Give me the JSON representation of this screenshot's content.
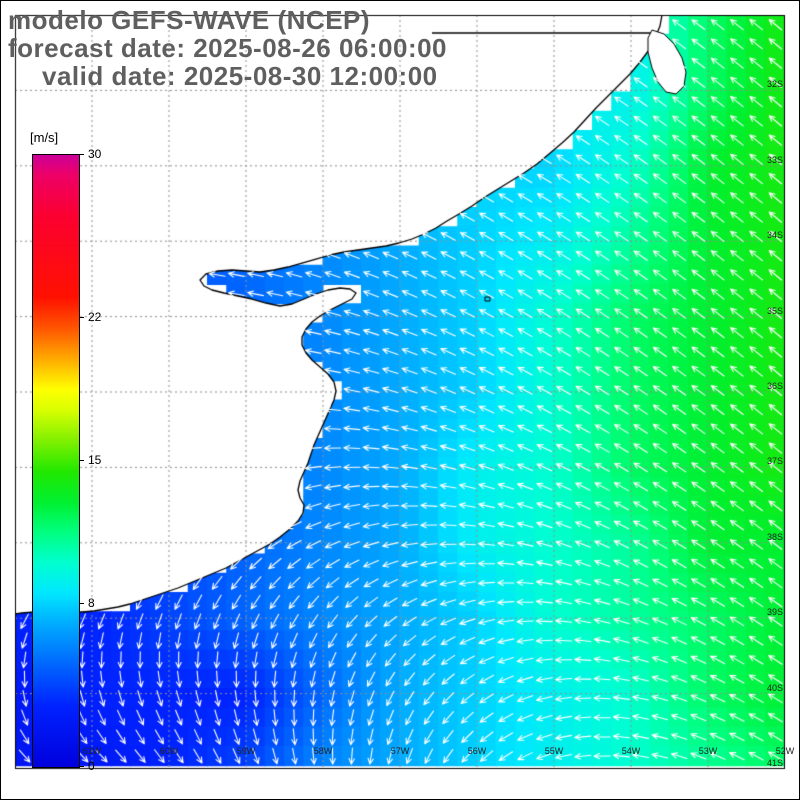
{
  "header": {
    "model_line": "modelo GEFS-WAVE (NCEP)",
    "forecast_line": "forecast date: 2025-08-26 06:00:00",
    "valid_line": "valid date: 2025-08-30 12:00:00"
  },
  "colorbar": {
    "unit_label": "[m/s]",
    "min": 0,
    "max": 30,
    "ticks": [
      {
        "v": 30,
        "label": "30"
      },
      {
        "v": 22,
        "label": "22"
      },
      {
        "v": 15,
        "label": "15"
      },
      {
        "v": 8,
        "label": "8"
      },
      {
        "v": 0,
        "label": "0"
      }
    ],
    "stops": [
      {
        "v": 0,
        "c": "#0000dd"
      },
      {
        "v": 3,
        "c": "#0022ff"
      },
      {
        "v": 5,
        "c": "#0066ff"
      },
      {
        "v": 7,
        "c": "#00aaff"
      },
      {
        "v": 8.5,
        "c": "#00e6ff"
      },
      {
        "v": 10,
        "c": "#00ffd0"
      },
      {
        "v": 11.5,
        "c": "#00ff80"
      },
      {
        "v": 13,
        "c": "#00f030"
      },
      {
        "v": 14.5,
        "c": "#22e800"
      },
      {
        "v": 16,
        "c": "#80f000"
      },
      {
        "v": 17.5,
        "c": "#d8ff00"
      },
      {
        "v": 18.5,
        "c": "#ffff00"
      },
      {
        "v": 20,
        "c": "#ffaa00"
      },
      {
        "v": 21.5,
        "c": "#ff5500"
      },
      {
        "v": 23,
        "c": "#ff1100"
      },
      {
        "v": 27,
        "c": "#fb0030"
      },
      {
        "v": 29,
        "c": "#ee0066"
      },
      {
        "v": 30,
        "c": "#cc0099"
      }
    ]
  },
  "colors": {
    "background": "#ffffff",
    "coastline": "#000000",
    "grid": "#909090",
    "arrows": "#ffffff",
    "title_text": "#5f5f5f",
    "axis_text": "#222222"
  },
  "chart_data": {
    "type": "heatmap",
    "title": "modelo GEFS-WAVE (NCEP)",
    "variable": "wave/wind speed with direction arrows",
    "units": "m/s",
    "scale_min": 0,
    "scale_max": 30,
    "region": "Rio de la Plata / Argentina-Uruguay Atlantic coast",
    "lat_ticks": [
      "32S",
      "33S",
      "34S",
      "35S",
      "36S",
      "37S",
      "38S",
      "39S",
      "40S",
      "41S"
    ],
    "lon_ticks": [
      "61W",
      "60W",
      "59W",
      "58W",
      "57W",
      "56W",
      "55W",
      "54W",
      "53W",
      "52W"
    ],
    "grid": {
      "rows": 11,
      "cols": 11
    },
    "speeds": [
      [
        null,
        null,
        null,
        null,
        null,
        null,
        null,
        null,
        9,
        12,
        14
      ],
      [
        null,
        null,
        null,
        null,
        null,
        null,
        null,
        null,
        9,
        12,
        14
      ],
      [
        null,
        null,
        null,
        null,
        null,
        null,
        null,
        8,
        10,
        13,
        14
      ],
      [
        null,
        null,
        5,
        5,
        6,
        7,
        8,
        9,
        11,
        13,
        14
      ],
      [
        null,
        null,
        4,
        5,
        6,
        7,
        8,
        10,
        12,
        13,
        14
      ],
      [
        null,
        null,
        4,
        5,
        6,
        7,
        8,
        10,
        12,
        13,
        14
      ],
      [
        null,
        null,
        4,
        5,
        6,
        7,
        9,
        10,
        12,
        13,
        14
      ],
      [
        null,
        null,
        4,
        5,
        6,
        7,
        9,
        10,
        11,
        13,
        13
      ],
      [
        3,
        3,
        4,
        5,
        6,
        7,
        8,
        10,
        11,
        12,
        13
      ],
      [
        2,
        3,
        3,
        3,
        5,
        7,
        8,
        9,
        10,
        12,
        13
      ],
      [
        2,
        2,
        3,
        4,
        6,
        7,
        8,
        9,
        10,
        11,
        12
      ]
    ],
    "directions_deg": [
      [
        150,
        150,
        150,
        150,
        150,
        150,
        150,
        148,
        145,
        142,
        140
      ],
      [
        152,
        152,
        152,
        152,
        152,
        152,
        150,
        148,
        145,
        142,
        140
      ],
      [
        155,
        155,
        155,
        155,
        155,
        152,
        150,
        148,
        145,
        142,
        140
      ],
      [
        160,
        160,
        168,
        166,
        160,
        155,
        150,
        148,
        145,
        142,
        140
      ],
      [
        170,
        172,
        176,
        172,
        165,
        158,
        152,
        148,
        145,
        142,
        140
      ],
      [
        182,
        184,
        188,
        182,
        172,
        162,
        155,
        150,
        146,
        143,
        140
      ],
      [
        192,
        196,
        202,
        196,
        186,
        172,
        162,
        155,
        148,
        144,
        141
      ],
      [
        210,
        216,
        222,
        216,
        205,
        190,
        175,
        162,
        152,
        146,
        142
      ],
      [
        240,
        246,
        250,
        244,
        234,
        214,
        195,
        175,
        160,
        150,
        144
      ],
      [
        278,
        284,
        286,
        276,
        260,
        240,
        215,
        190,
        170,
        155,
        147
      ],
      [
        318,
        320,
        310,
        296,
        276,
        256,
        226,
        196,
        172,
        158,
        148
      ]
    ]
  }
}
